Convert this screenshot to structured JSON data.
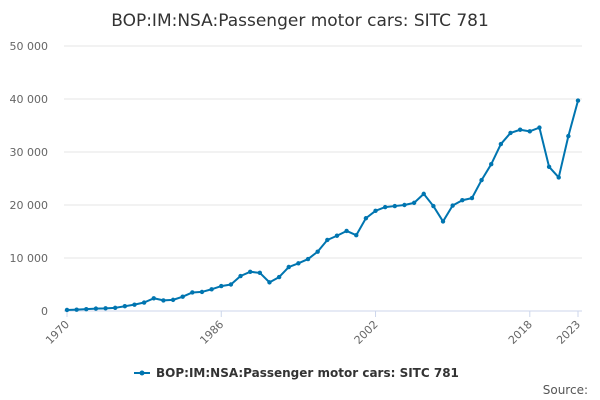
{
  "chart_data": {
    "type": "line",
    "title": "BOP:IM:NSA:Passenger motor cars: SITC 781",
    "xlabel": "",
    "ylabel": "",
    "xlim": [
      1970,
      2023
    ],
    "ylim": [
      0,
      50000
    ],
    "grid": true,
    "legend_position": "bottom",
    "x_ticks": [
      "1970",
      "1986",
      "2002",
      "2018",
      "2023"
    ],
    "y_ticks": [
      "0",
      "10 000",
      "20 000",
      "30 000",
      "40 000",
      "50 000"
    ],
    "y_tick_values": [
      0,
      10000,
      20000,
      30000,
      40000,
      50000
    ],
    "series": [
      {
        "name": "BOP:IM:NSA:Passenger motor cars: SITC 781",
        "color": "#0075b0",
        "x": [
          1970,
          1971,
          1972,
          1973,
          1974,
          1975,
          1976,
          1977,
          1978,
          1979,
          1980,
          1981,
          1982,
          1983,
          1984,
          1985,
          1986,
          1987,
          1988,
          1989,
          1990,
          1991,
          1992,
          1993,
          1994,
          1995,
          1996,
          1997,
          1998,
          1999,
          2000,
          2001,
          2002,
          2003,
          2004,
          2005,
          2006,
          2007,
          2008,
          2009,
          2010,
          2011,
          2012,
          2013,
          2014,
          2015,
          2016,
          2017,
          2018,
          2019,
          2020,
          2021,
          2022,
          2023
        ],
        "values": [
          200,
          250,
          350,
          450,
          500,
          600,
          900,
          1200,
          1600,
          2400,
          2000,
          2100,
          2700,
          3500,
          3600,
          4100,
          4700,
          5000,
          6600,
          7400,
          7200,
          5400,
          6400,
          8300,
          9000,
          9800,
          11200,
          13400,
          14200,
          15100,
          14300,
          17500,
          18900,
          19600,
          19800,
          20000,
          20400,
          22100,
          19800,
          16900,
          19900,
          20900,
          21300,
          24700,
          27700,
          31500,
          33600,
          34200,
          33900,
          34600,
          27200,
          25200,
          33000,
          39700
        ]
      }
    ]
  },
  "source_label": "Source:"
}
